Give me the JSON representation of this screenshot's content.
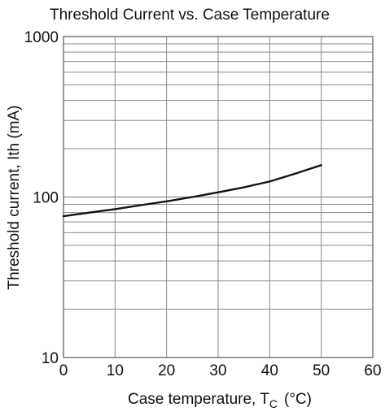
{
  "chart_data": {
    "type": "line",
    "title": "Threshold Current vs. Case Temperature",
    "xlabel": "Case temperature,  T",
    "xlabel_subscript": "C",
    "xlabel_unit": "(°C)",
    "ylabel": "Threshold current,  Ith  (mA)",
    "xlim": [
      0,
      60
    ],
    "ylim": [
      10,
      1000
    ],
    "y_scale": "log",
    "grid": true,
    "x_ticks": [
      "0",
      "10",
      "20",
      "30",
      "40",
      "50",
      "60"
    ],
    "y_ticks": [
      "10",
      "100",
      "1000"
    ],
    "series": [
      {
        "x": [
          0,
          5,
          10,
          15,
          20,
          25,
          30,
          35,
          40,
          45,
          50
        ],
        "y": [
          76,
          80,
          84,
          89,
          94,
          100,
          107,
          115,
          125,
          140,
          158
        ]
      }
    ],
    "colors": {
      "line": "#111111",
      "grid": "#8a8a8a",
      "frame": "#555555"
    }
  }
}
